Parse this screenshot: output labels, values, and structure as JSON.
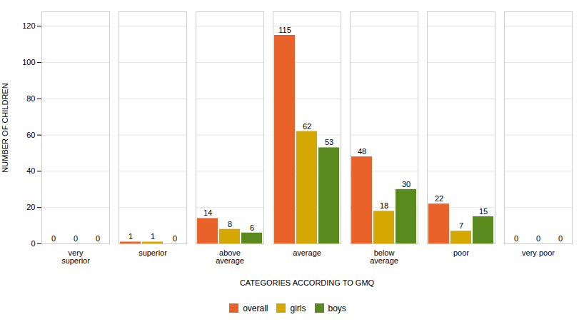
{
  "chart_data": {
    "type": "bar",
    "categories": [
      "very\nsuperior",
      "superior",
      "above\naverage",
      "average",
      "below\naverage",
      "poor",
      "very poor"
    ],
    "series": [
      {
        "name": "overall",
        "color": "#E8622A",
        "values": [
          0,
          1,
          14,
          115,
          48,
          22,
          0
        ]
      },
      {
        "name": "girls",
        "color": "#D4A800",
        "values": [
          0,
          1,
          8,
          62,
          18,
          7,
          0
        ]
      },
      {
        "name": "boys",
        "color": "#5A8A1E",
        "values": [
          0,
          0,
          6,
          53,
          30,
          15,
          0
        ]
      }
    ],
    "xlabel": "CATEGORIES ACCORDING TO GMQ",
    "ylabel": "NUMBER OF CHILDREN",
    "ylim": [
      0,
      128
    ],
    "yticks": [
      0,
      20,
      40,
      60,
      80,
      100,
      120
    ],
    "grid": true,
    "legend": "bottom",
    "data_labels": true
  }
}
